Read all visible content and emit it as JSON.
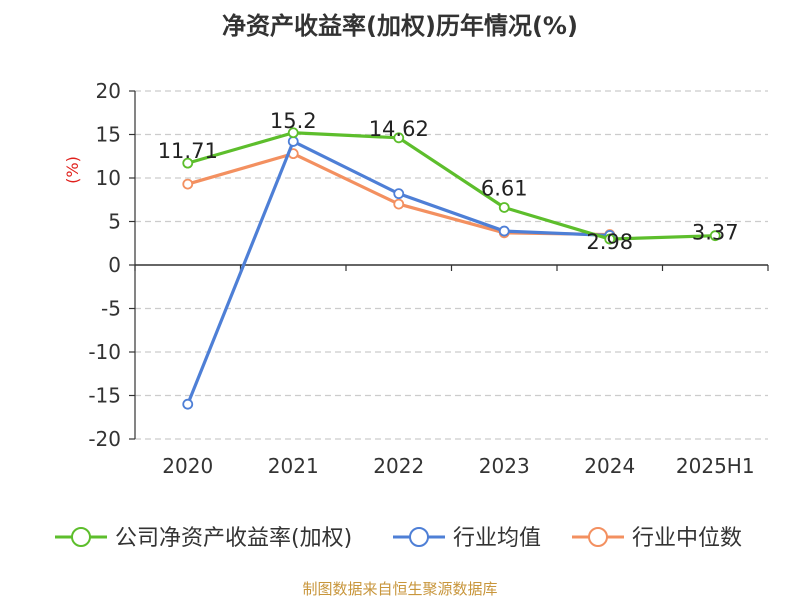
{
  "chart_data": {
    "type": "line",
    "title": "净资产收益率(加权)历年情况(%)",
    "ylabel": "(%)",
    "xlabel": "",
    "categories": [
      "2020",
      "2021",
      "2022",
      "2023",
      "2024",
      "2025H1"
    ],
    "ylim": [
      -20,
      20
    ],
    "yticks": [
      20,
      15,
      10,
      5,
      0,
      -5,
      -10,
      -15,
      -20
    ],
    "grid": true,
    "legend_position": "bottom",
    "series": [
      {
        "name": "公司净资产收益率(加权)",
        "color": "#5dbe2c",
        "values": [
          11.71,
          15.2,
          14.62,
          6.61,
          2.98,
          3.37
        ],
        "labels": [
          "11.71",
          "15.2",
          "14.62",
          "6.61",
          "2.98",
          "3.37"
        ]
      },
      {
        "name": "行业均值",
        "color": "#4e7fd6",
        "values": [
          -16.0,
          14.2,
          8.2,
          3.9,
          3.4,
          null
        ]
      },
      {
        "name": "行业中位数",
        "color": "#f39060",
        "values": [
          9.3,
          12.8,
          7.0,
          3.7,
          3.5,
          null
        ]
      }
    ]
  },
  "source": "制图数据来自恒生聚源数据库"
}
